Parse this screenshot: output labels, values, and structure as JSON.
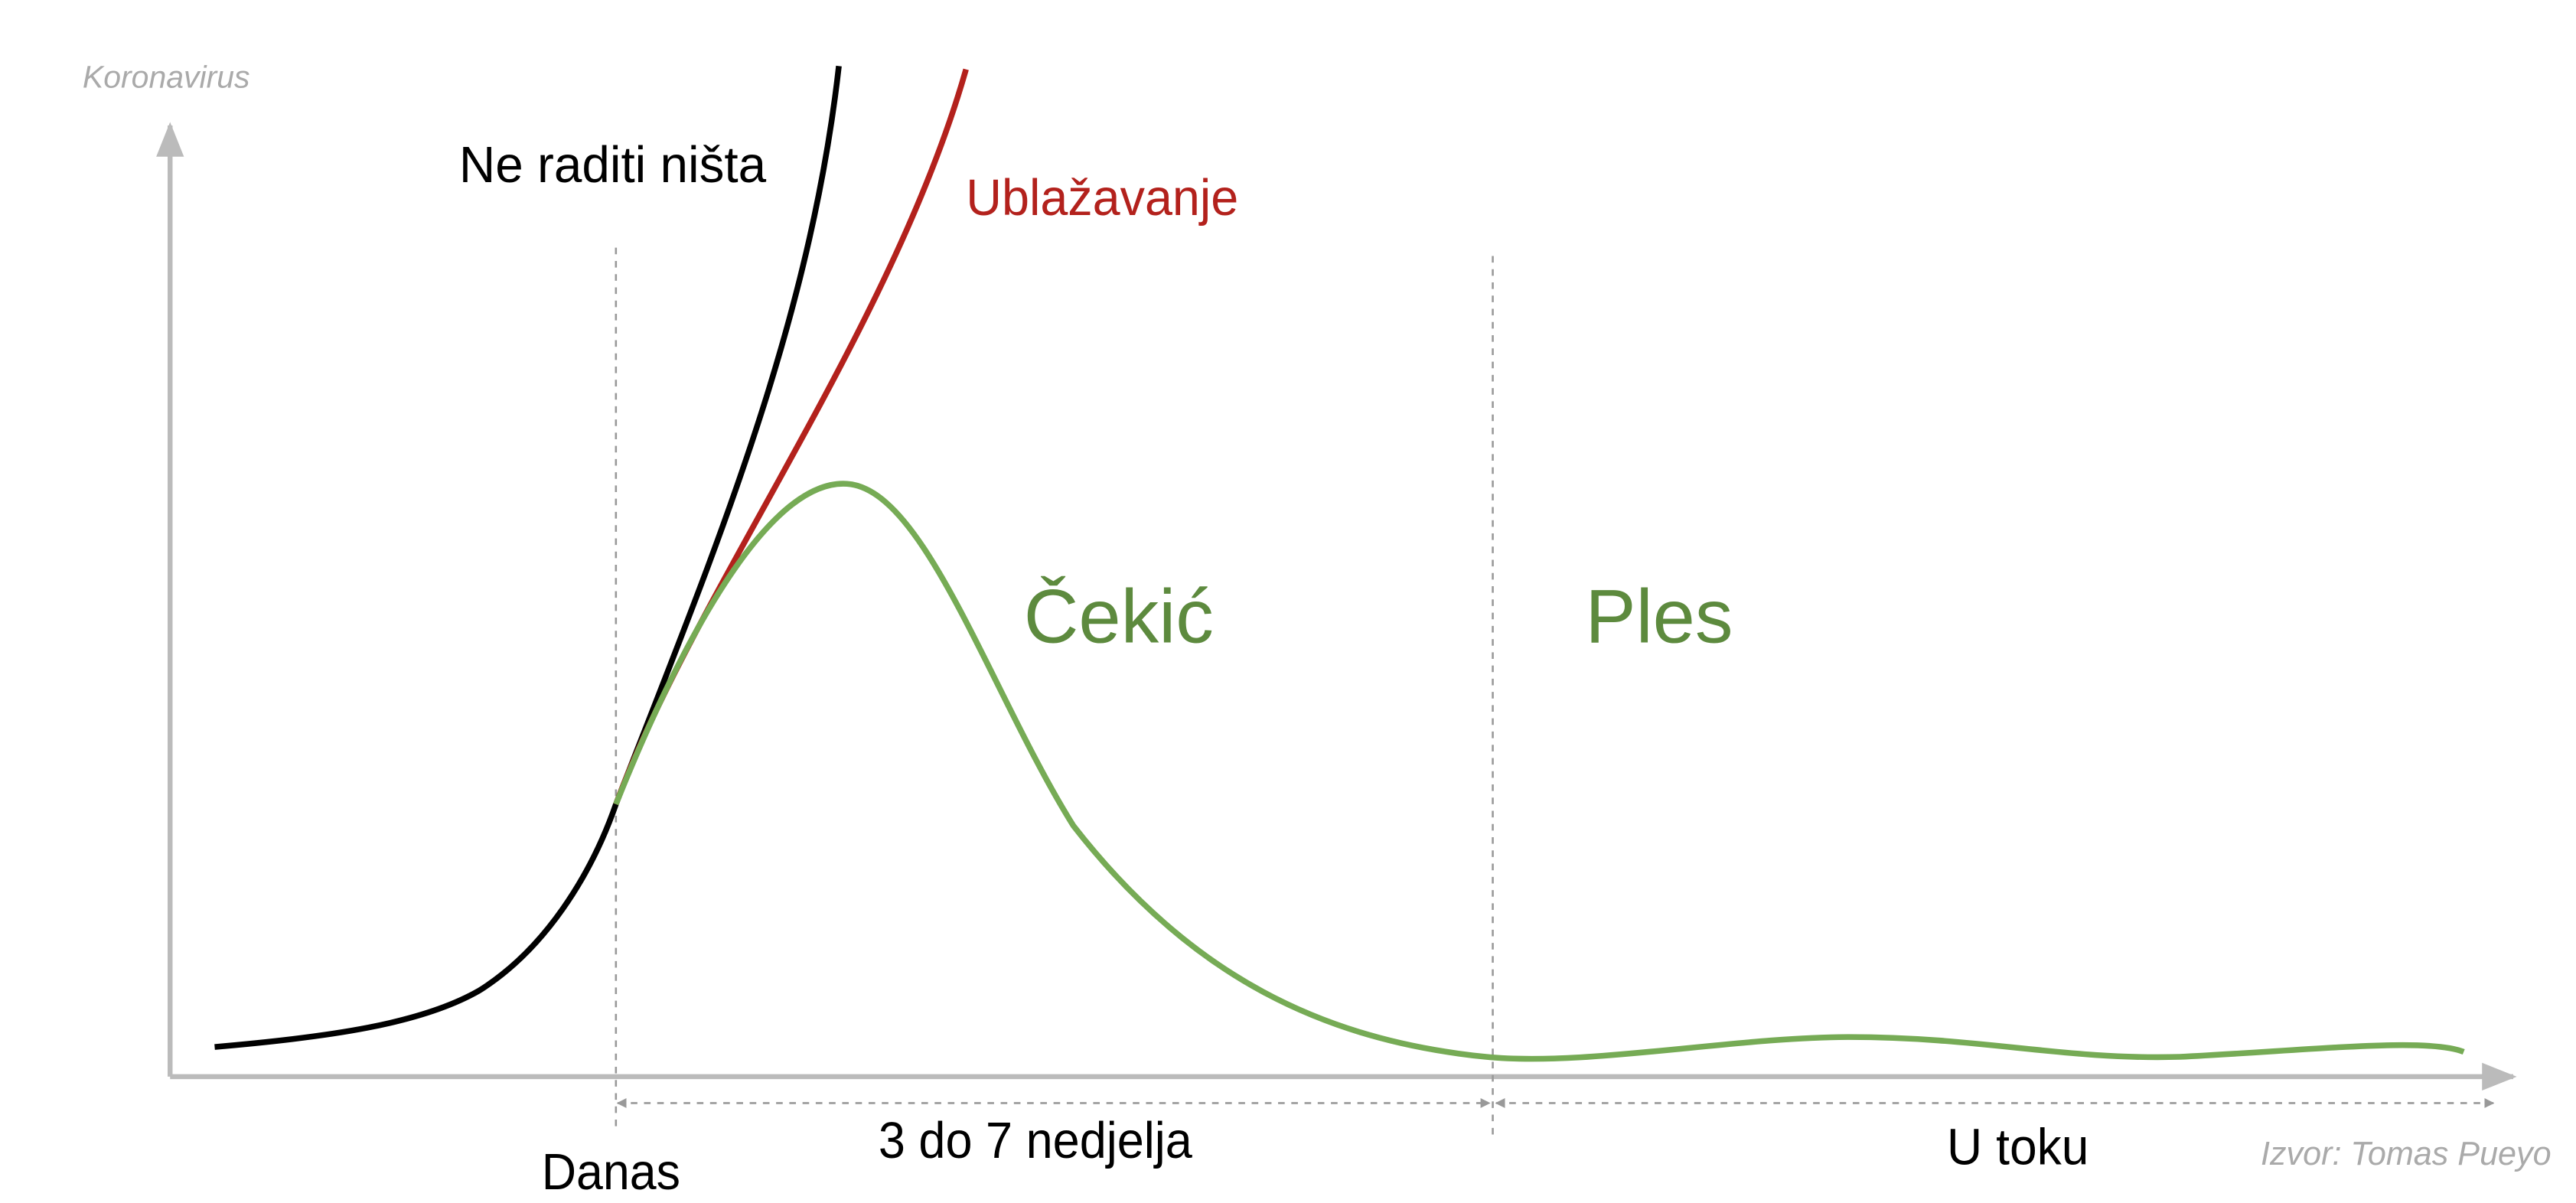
{
  "axis_label": "Koronavirus",
  "curves": [
    {
      "label": "Ne raditi ništa"
    },
    {
      "label": "Ublažavanje"
    }
  ],
  "phases": [
    {
      "label": "Čekić",
      "duration": "3 do 7 nedjelja"
    },
    {
      "label": "Ples",
      "duration": "U toku"
    }
  ],
  "start_label": "Danas",
  "source": "Izvor: Tomas Pueyo"
}
